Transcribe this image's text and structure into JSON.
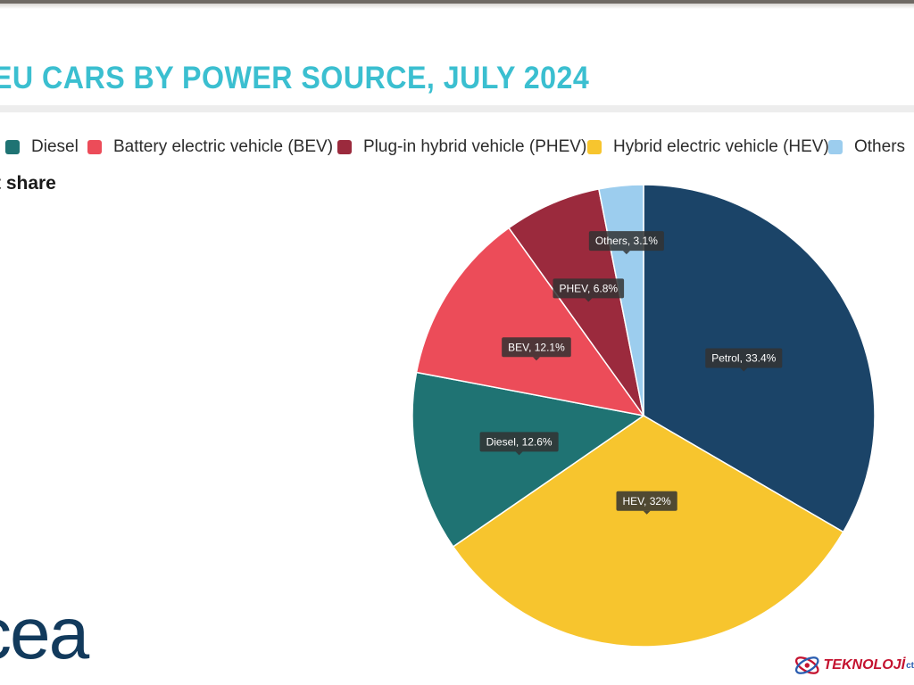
{
  "chart_data": {
    "type": "pie",
    "title": "EU CARS BY POWER SOURCE, JULY 2024",
    "subtitle": "t share",
    "start_angle_deg": 0,
    "direction": "clockwise",
    "slices": [
      {
        "name": "Petrol",
        "value": 33.4,
        "label": "Petrol, 33.4%",
        "color": "#1b4468"
      },
      {
        "name": "HEV",
        "value": 32,
        "label": "HEV, 32%",
        "color": "#f7c52e"
      },
      {
        "name": "Diesel",
        "value": 12.6,
        "label": "Diesel, 12.6%",
        "color": "#1f7373"
      },
      {
        "name": "BEV",
        "value": 12.1,
        "label": "BEV, 12.1%",
        "color": "#ec4c59"
      },
      {
        "name": "PHEV",
        "value": 6.8,
        "label": "PHEV, 6.8%",
        "color": "#9b2a3d"
      },
      {
        "name": "Others",
        "value": 3.1,
        "label": "Others, 3.1%",
        "color": "#9ccdee"
      }
    ],
    "legend": [
      {
        "label": "Diesel",
        "color": "#1f7373"
      },
      {
        "label": "Battery electric vehicle (BEV)",
        "color": "#ec4c59"
      },
      {
        "label": "Plug-in hybrid vehicle (PHEV)",
        "color": "#9b2a3d"
      },
      {
        "label": "Hybrid electric vehicle (HEV)",
        "color": "#f7c52e"
      },
      {
        "label": "Others",
        "color": "#9ccdee"
      }
    ]
  },
  "branding": {
    "logo_text": "cea",
    "watermark_text": "TEKNOLOJİ",
    "watermark_suffix": "ct"
  }
}
